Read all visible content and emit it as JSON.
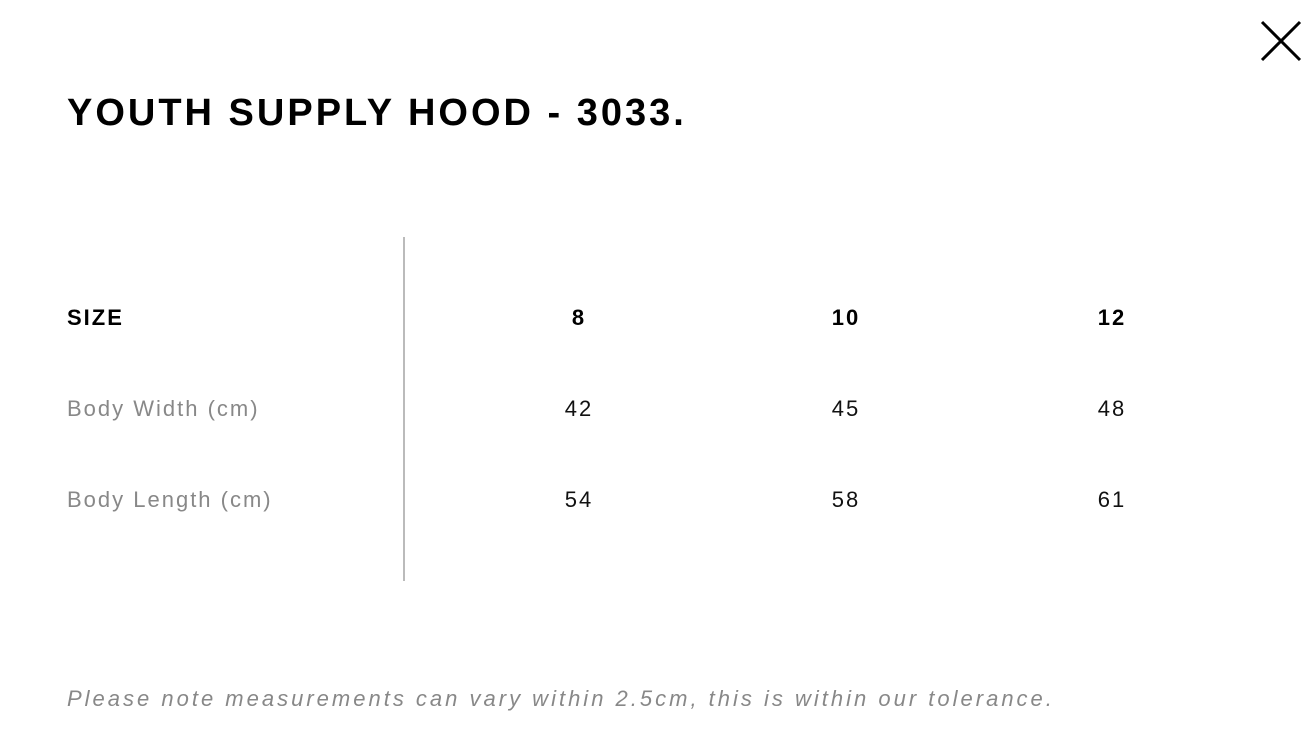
{
  "title": "YOUTH SUPPLY HOOD - 3033.",
  "table": {
    "header": {
      "label": "SIZE",
      "values": [
        "8",
        "10",
        "12"
      ]
    },
    "rows": [
      {
        "label": "Body Width (cm)",
        "values": [
          "42",
          "45",
          "48"
        ]
      },
      {
        "label": "Body Length (cm)",
        "values": [
          "54",
          "58",
          "61"
        ]
      }
    ]
  },
  "note": "Please note measurements can vary within 2.5cm, this is within our tolerance."
}
